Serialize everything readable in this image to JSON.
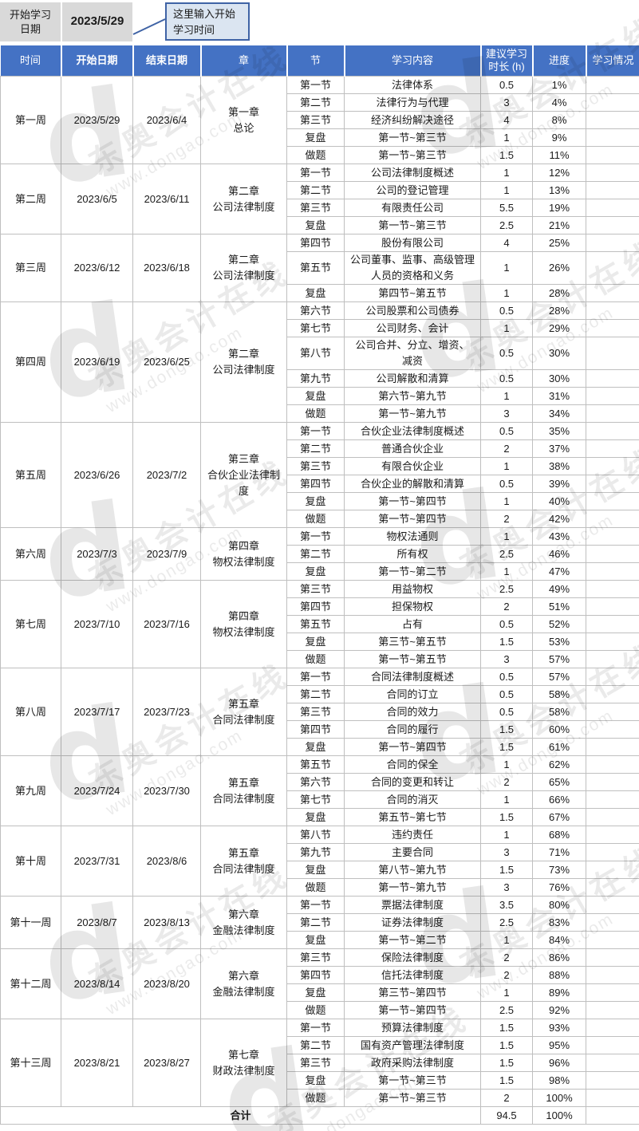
{
  "top_bar": {
    "label": "开始学习\n日期",
    "date_value": "2023/5/29",
    "callout_text": "这里输入开始\n学习时间"
  },
  "table": {
    "headers": [
      "时间",
      "开始日期",
      "结束日期",
      "章",
      "节",
      "学习内容",
      "建议学习时长 (h)",
      "进度",
      "学习情况"
    ],
    "weeks": [
      {
        "week": "第一周",
        "start": "2023/5/29",
        "end": "2023/6/4",
        "chapter": "第一章\n总论",
        "rows": [
          {
            "section": "第一节",
            "content": "法律体系",
            "hours": "0.5",
            "progress": "1%",
            "status": ""
          },
          {
            "section": "第二节",
            "content": "法律行为与代理",
            "hours": "3",
            "progress": "4%",
            "status": ""
          },
          {
            "section": "第三节",
            "content": "经济纠纷解决途径",
            "hours": "4",
            "progress": "8%",
            "status": ""
          },
          {
            "section": "复盘",
            "content": "第一节~第三节",
            "hours": "1",
            "progress": "9%",
            "status": ""
          },
          {
            "section": "做题",
            "content": "第一节~第三节",
            "hours": "1.5",
            "progress": "11%",
            "status": ""
          }
        ]
      },
      {
        "week": "第二周",
        "start": "2023/6/5",
        "end": "2023/6/11",
        "chapter": "第二章\n公司法律制度",
        "rows": [
          {
            "section": "第一节",
            "content": "公司法律制度概述",
            "hours": "1",
            "progress": "12%",
            "status": ""
          },
          {
            "section": "第二节",
            "content": "公司的登记管理",
            "hours": "1",
            "progress": "13%",
            "status": ""
          },
          {
            "section": "第三节",
            "content": "有限责任公司",
            "hours": "5.5",
            "progress": "19%",
            "status": ""
          },
          {
            "section": "复盘",
            "content": "第一节~第三节",
            "hours": "2.5",
            "progress": "21%",
            "status": ""
          }
        ]
      },
      {
        "week": "第三周",
        "start": "2023/6/12",
        "end": "2023/6/18",
        "chapter": "第二章\n公司法律制度",
        "rows": [
          {
            "section": "第四节",
            "content": "股份有限公司",
            "hours": "4",
            "progress": "25%",
            "status": ""
          },
          {
            "section": "第五节",
            "content": "公司董事、监事、高级管理人员的资格和义务",
            "hours": "1",
            "progress": "26%",
            "status": ""
          },
          {
            "section": "复盘",
            "content": "第四节~第五节",
            "hours": "1",
            "progress": "28%",
            "status": ""
          }
        ]
      },
      {
        "week": "第四周",
        "start": "2023/6/19",
        "end": "2023/6/25",
        "chapter": "第二章\n公司法律制度",
        "rows": [
          {
            "section": "第六节",
            "content": "公司股票和公司债券",
            "hours": "0.5",
            "progress": "28%",
            "status": ""
          },
          {
            "section": "第七节",
            "content": "公司财务、会计",
            "hours": "1",
            "progress": "29%",
            "status": ""
          },
          {
            "section": "第八节",
            "content": "公司合并、分立、增资、\n减资",
            "hours": "0.5",
            "progress": "30%",
            "status": ""
          },
          {
            "section": "第九节",
            "content": "公司解散和清算",
            "hours": "0.5",
            "progress": "30%",
            "status": ""
          },
          {
            "section": "复盘",
            "content": "第六节~第九节",
            "hours": "1",
            "progress": "31%",
            "status": ""
          },
          {
            "section": "做题",
            "content": "第一节~第九节",
            "hours": "3",
            "progress": "34%",
            "status": ""
          }
        ]
      },
      {
        "week": "第五周",
        "start": "2023/6/26",
        "end": "2023/7/2",
        "chapter": "第三章\n合伙企业法律制度",
        "rows": [
          {
            "section": "第一节",
            "content": "合伙企业法律制度概述",
            "hours": "0.5",
            "progress": "35%",
            "status": ""
          },
          {
            "section": "第二节",
            "content": "普通合伙企业",
            "hours": "2",
            "progress": "37%",
            "status": ""
          },
          {
            "section": "第三节",
            "content": "有限合伙企业",
            "hours": "1",
            "progress": "38%",
            "status": ""
          },
          {
            "section": "第四节",
            "content": "合伙企业的解散和清算",
            "hours": "0.5",
            "progress": "39%",
            "status": ""
          },
          {
            "section": "复盘",
            "content": "第一节~第四节",
            "hours": "1",
            "progress": "40%",
            "status": ""
          },
          {
            "section": "做题",
            "content": "第一节~第四节",
            "hours": "2",
            "progress": "42%",
            "status": ""
          }
        ]
      },
      {
        "week": "第六周",
        "start": "2023/7/3",
        "end": "2023/7/9",
        "chapter": "第四章\n物权法律制度",
        "rows": [
          {
            "section": "第一节",
            "content": "物权法通则",
            "hours": "1",
            "progress": "43%",
            "status": ""
          },
          {
            "section": "第二节",
            "content": "所有权",
            "hours": "2.5",
            "progress": "46%",
            "status": ""
          },
          {
            "section": "复盘",
            "content": "第一节~第二节",
            "hours": "1",
            "progress": "47%",
            "status": ""
          }
        ]
      },
      {
        "week": "第七周",
        "start": "2023/7/10",
        "end": "2023/7/16",
        "chapter": "第四章\n物权法律制度",
        "rows": [
          {
            "section": "第三节",
            "content": "用益物权",
            "hours": "2.5",
            "progress": "49%",
            "status": ""
          },
          {
            "section": "第四节",
            "content": "担保物权",
            "hours": "2",
            "progress": "51%",
            "status": ""
          },
          {
            "section": "第五节",
            "content": "占有",
            "hours": "0.5",
            "progress": "52%",
            "status": ""
          },
          {
            "section": "复盘",
            "content": "第三节~第五节",
            "hours": "1.5",
            "progress": "53%",
            "status": ""
          },
          {
            "section": "做题",
            "content": "第一节~第五节",
            "hours": "3",
            "progress": "57%",
            "status": ""
          }
        ]
      },
      {
        "week": "第八周",
        "start": "2023/7/17",
        "end": "2023/7/23",
        "chapter": "第五章\n合同法律制度",
        "rows": [
          {
            "section": "第一节",
            "content": "合同法律制度概述",
            "hours": "0.5",
            "progress": "57%",
            "status": ""
          },
          {
            "section": "第二节",
            "content": "合同的订立",
            "hours": "0.5",
            "progress": "58%",
            "status": ""
          },
          {
            "section": "第三节",
            "content": "合同的效力",
            "hours": "0.5",
            "progress": "58%",
            "status": ""
          },
          {
            "section": "第四节",
            "content": "合同的履行",
            "hours": "1.5",
            "progress": "60%",
            "status": ""
          },
          {
            "section": "复盘",
            "content": "第一节~第四节",
            "hours": "1.5",
            "progress": "61%",
            "status": ""
          }
        ]
      },
      {
        "week": "第九周",
        "start": "2023/7/24",
        "end": "2023/7/30",
        "chapter": "第五章\n合同法律制度",
        "rows": [
          {
            "section": "第五节",
            "content": "合同的保全",
            "hours": "1",
            "progress": "62%",
            "status": ""
          },
          {
            "section": "第六节",
            "content": "合同的变更和转让",
            "hours": "2",
            "progress": "65%",
            "status": ""
          },
          {
            "section": "第七节",
            "content": "合同的消灭",
            "hours": "1",
            "progress": "66%",
            "status": ""
          },
          {
            "section": "复盘",
            "content": "第五节~第七节",
            "hours": "1.5",
            "progress": "67%",
            "status": ""
          }
        ]
      },
      {
        "week": "第十周",
        "start": "2023/7/31",
        "end": "2023/8/6",
        "chapter": "第五章\n合同法律制度",
        "rows": [
          {
            "section": "第八节",
            "content": "违约责任",
            "hours": "1",
            "progress": "68%",
            "status": ""
          },
          {
            "section": "第九节",
            "content": "主要合同",
            "hours": "3",
            "progress": "71%",
            "status": ""
          },
          {
            "section": "复盘",
            "content": "第八节~第九节",
            "hours": "1.5",
            "progress": "73%",
            "status": ""
          },
          {
            "section": "做题",
            "content": "第一节~第九节",
            "hours": "3",
            "progress": "76%",
            "status": ""
          }
        ]
      },
      {
        "week": "第十一周",
        "start": "2023/8/7",
        "end": "2023/8/13",
        "chapter": "第六章\n金融法律制度",
        "rows": [
          {
            "section": "第一节",
            "content": "票据法律制度",
            "hours": "3.5",
            "progress": "80%",
            "status": ""
          },
          {
            "section": "第二节",
            "content": "证券法律制度",
            "hours": "2.5",
            "progress": "83%",
            "status": ""
          },
          {
            "section": "复盘",
            "content": "第一节~第二节",
            "hours": "1",
            "progress": "84%",
            "status": ""
          }
        ]
      },
      {
        "week": "第十二周",
        "start": "2023/8/14",
        "end": "2023/8/20",
        "chapter": "第六章\n金融法律制度",
        "rows": [
          {
            "section": "第三节",
            "content": "保险法律制度",
            "hours": "2",
            "progress": "86%",
            "status": ""
          },
          {
            "section": "第四节",
            "content": "信托法律制度",
            "hours": "2",
            "progress": "88%",
            "status": ""
          },
          {
            "section": "复盘",
            "content": "第三节~第四节",
            "hours": "1",
            "progress": "89%",
            "status": ""
          },
          {
            "section": "做题",
            "content": "第一节~第四节",
            "hours": "2.5",
            "progress": "92%",
            "status": ""
          }
        ]
      },
      {
        "week": "第十三周",
        "start": "2023/8/21",
        "end": "2023/8/27",
        "chapter": "第七章\n财政法律制度",
        "rows": [
          {
            "section": "第一节",
            "content": "预算法律制度",
            "hours": "1.5",
            "progress": "93%",
            "status": ""
          },
          {
            "section": "第二节",
            "content": "国有资产管理法律制度",
            "hours": "1.5",
            "progress": "95%",
            "status": ""
          },
          {
            "section": "第三节",
            "content": "政府采购法律制度",
            "hours": "1.5",
            "progress": "96%",
            "status": ""
          },
          {
            "section": "复盘",
            "content": "第一节~第三节",
            "hours": "1.5",
            "progress": "98%",
            "status": ""
          },
          {
            "section": "做题",
            "content": "第一节~第三节",
            "hours": "2",
            "progress": "100%",
            "status": ""
          }
        ]
      }
    ],
    "total": {
      "label": "合计",
      "hours": "94.5",
      "progress": "100%",
      "status": ""
    }
  },
  "watermark": {
    "brand": "东奥会计在线",
    "url": "www.dongao.com",
    "logo_letter": "d"
  },
  "colors": {
    "header_bg": "#4472c4",
    "header_text": "#ffffff",
    "gray_cell": "#d9d9d9",
    "callout_bg": "#dbe5f1",
    "callout_border": "#3f63a5",
    "grid_border": "#bfbfbf"
  }
}
